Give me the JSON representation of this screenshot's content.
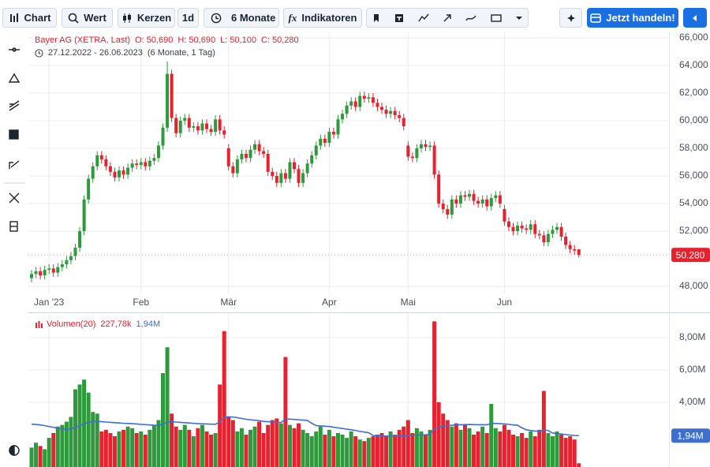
{
  "toolbar": {
    "chart": "Chart",
    "search": "Wert",
    "style": "Kerzen",
    "interval": "1d",
    "range": "6 Monate",
    "indicators": "Indikatoren",
    "trade": "Jetzt handeln!"
  },
  "chart_data": [
    {
      "type": "candlestick",
      "title": "Bayer AG (XETRA, Last)",
      "legend_items": [
        "O: 50,690",
        "H: 50,690",
        "L: 50,100",
        "C: 50,280"
      ],
      "date_range": "27.12.2022 - 26.06.2023",
      "period": "(6 Monate, 1 Tag)",
      "categories": [
        null,
        null,
        null,
        null,
        "Jan '23",
        null,
        null,
        null,
        null,
        null,
        null,
        null,
        null,
        null,
        null,
        null,
        null,
        null,
        null,
        null,
        null,
        null,
        null,
        null,
        null,
        "Feb",
        null,
        null,
        null,
        null,
        null,
        null,
        null,
        null,
        null,
        null,
        null,
        null,
        null,
        null,
        null,
        null,
        null,
        null,
        null,
        "Mär",
        null,
        null,
        null,
        null,
        null,
        null,
        null,
        null,
        null,
        null,
        null,
        null,
        null,
        null,
        null,
        null,
        null,
        null,
        null,
        null,
        null,
        null,
        "Apr",
        null,
        null,
        null,
        null,
        null,
        null,
        null,
        null,
        null,
        null,
        null,
        null,
        null,
        null,
        null,
        null,
        null,
        "Mai",
        null,
        null,
        null,
        null,
        null,
        null,
        null,
        null,
        null,
        null,
        null,
        null,
        null,
        null,
        null,
        null,
        null,
        null,
        null,
        null,
        null,
        "Jun",
        null,
        null,
        null,
        null,
        null,
        null,
        null,
        null,
        null,
        null,
        null,
        null,
        null,
        null,
        null,
        null,
        null
      ],
      "open": [
        48600,
        48900,
        49100,
        48800,
        49200,
        49300,
        49000,
        49400,
        49600,
        49900,
        50200,
        50800,
        52000,
        54300,
        55800,
        56700,
        57500,
        57200,
        56700,
        56300,
        55900,
        56400,
        56100,
        56600,
        56900,
        56800,
        57000,
        56700,
        57100,
        57300,
        58200,
        59500,
        63400,
        60200,
        59100,
        60000,
        60200,
        59500,
        59600,
        59300,
        59800,
        59400,
        59200,
        60100,
        59300,
        58000,
        56700,
        56200,
        57200,
        57600,
        57300,
        57900,
        58300,
        57800,
        57600,
        56300,
        56000,
        55500,
        56200,
        55800,
        57000,
        56500,
        55500,
        56200,
        56900,
        57500,
        58200,
        58700,
        58400,
        59200,
        59000,
        60100,
        60500,
        61100,
        61400,
        61000,
        61800,
        61600,
        61700,
        61300,
        61000,
        60800,
        60500,
        60700,
        60400,
        60200,
        58200,
        57400,
        57300,
        58000,
        58300,
        58100,
        58200,
        56100,
        54000,
        53600,
        53200,
        54300,
        54000,
        54600,
        54500,
        54700,
        54200,
        54000,
        54300,
        53800,
        54400,
        54600,
        53600,
        52700,
        52300,
        52000,
        52400,
        52200,
        52100,
        52500,
        51800,
        51700,
        51200,
        51800,
        52100,
        52300,
        51600,
        51000,
        50700,
        50690
      ],
      "high": [
        49200,
        49400,
        49400,
        49500,
        49600,
        49600,
        49700,
        49900,
        50200,
        50500,
        51100,
        52300,
        54600,
        56100,
        57000,
        57800,
        57800,
        57500,
        57000,
        56600,
        56700,
        56700,
        56900,
        57200,
        57200,
        57300,
        57300,
        57400,
        57600,
        58500,
        59800,
        64300,
        63700,
        60500,
        60300,
        60500,
        60500,
        59900,
        59900,
        60100,
        60100,
        59700,
        60400,
        60400,
        59600,
        58300,
        57000,
        57500,
        57900,
        57900,
        58200,
        58600,
        58600,
        58100,
        57900,
        56600,
        56300,
        56500,
        56500,
        57300,
        57300,
        56800,
        56500,
        57200,
        57800,
        58500,
        59000,
        59000,
        59500,
        59500,
        60400,
        60800,
        61400,
        61700,
        61700,
        62100,
        62100,
        62000,
        62000,
        61600,
        61300,
        61100,
        61000,
        61000,
        60700,
        60500,
        58500,
        57700,
        58300,
        58600,
        58600,
        58500,
        58500,
        56400,
        54300,
        53900,
        54600,
        54600,
        54900,
        54900,
        55000,
        55000,
        54500,
        54600,
        54600,
        54700,
        54900,
        54900,
        53900,
        53000,
        52600,
        52700,
        52700,
        52500,
        52800,
        52800,
        52100,
        52000,
        52100,
        52400,
        52600,
        52600,
        51900,
        51300,
        51000,
        50690
      ],
      "low": [
        48300,
        48600,
        48500,
        48500,
        48900,
        48700,
        48700,
        49100,
        49300,
        49600,
        49900,
        50500,
        51700,
        54000,
        55500,
        56400,
        56900,
        56400,
        56000,
        55600,
        55600,
        55800,
        55800,
        56300,
        56500,
        56500,
        56400,
        56400,
        56800,
        57000,
        57900,
        59200,
        59900,
        58800,
        58800,
        59700,
        59200,
        59200,
        59000,
        59000,
        59100,
        58900,
        58900,
        59000,
        58700,
        56400,
        55900,
        55900,
        56900,
        57000,
        57000,
        57600,
        57500,
        57300,
        56000,
        55700,
        55200,
        55200,
        55500,
        55500,
        56200,
        55200,
        55200,
        55900,
        56600,
        57200,
        57900,
        58100,
        58100,
        58700,
        58700,
        59800,
        60200,
        60800,
        60700,
        60700,
        61300,
        61300,
        61000,
        60700,
        60500,
        60200,
        60200,
        60100,
        59900,
        59300,
        57100,
        57000,
        57000,
        57700,
        57800,
        57800,
        55800,
        53700,
        53300,
        52900,
        52900,
        53700,
        53700,
        54200,
        54200,
        53900,
        53700,
        53700,
        53500,
        53500,
        54100,
        53700,
        52400,
        52000,
        51700,
        51700,
        51900,
        51800,
        51800,
        51500,
        51400,
        50900,
        50900,
        51500,
        51800,
        51300,
        50700,
        50400,
        50300,
        50100
      ],
      "close": [
        48900,
        49100,
        48800,
        49200,
        49300,
        49000,
        49400,
        49600,
        49900,
        50200,
        50800,
        52000,
        54300,
        55800,
        56700,
        57500,
        57200,
        56700,
        56300,
        55900,
        56400,
        56100,
        56600,
        56900,
        56800,
        57000,
        56700,
        57100,
        57300,
        58200,
        59500,
        63400,
        60200,
        59100,
        60000,
        60200,
        59500,
        59600,
        59300,
        59800,
        59400,
        59200,
        60100,
        59300,
        59000,
        56700,
        56200,
        57200,
        57600,
        57300,
        57900,
        58300,
        57800,
        57600,
        56300,
        56000,
        55500,
        56200,
        55800,
        57000,
        56500,
        55500,
        56200,
        56900,
        57500,
        58200,
        58700,
        58400,
        59200,
        59000,
        60100,
        60500,
        61100,
        61400,
        61000,
        61800,
        61600,
        61700,
        61300,
        61000,
        60800,
        60500,
        60700,
        60400,
        60200,
        59600,
        57400,
        57300,
        58000,
        58300,
        58100,
        58200,
        56100,
        54000,
        53600,
        53200,
        54300,
        54000,
        54600,
        54500,
        54700,
        54200,
        54000,
        54300,
        53800,
        54400,
        54600,
        54000,
        52700,
        52300,
        52000,
        52400,
        52200,
        52100,
        52500,
        51800,
        51700,
        51200,
        51800,
        52100,
        52300,
        51600,
        51000,
        50700,
        50600,
        50280
      ],
      "last_price_label": "50.280",
      "up_color": "#2f9a3c",
      "down_color": "#e8212f",
      "grid": true,
      "ylim": [
        47490,
        66460
      ],
      "yticks": [
        {
          "value": 48000,
          "label": "48,000"
        },
        {
          "value": 52000,
          "label": "52,000"
        },
        {
          "value": 54000,
          "label": "54,000"
        },
        {
          "value": 56000,
          "label": "56,000"
        },
        {
          "value": 58000,
          "label": "58,000"
        },
        {
          "value": 60000,
          "label": "60,000"
        },
        {
          "value": 62000,
          "label": "62,000"
        },
        {
          "value": 64000,
          "label": "64,000"
        },
        {
          "value": 66000,
          "label": "66,000"
        }
      ]
    },
    {
      "type": "bar",
      "title": "Volumen(20)",
      "grid": true,
      "series": [
        {
          "values": [
            1200000,
            1500000,
            1300000,
            1100000,
            1800000,
            2100000,
            2500000,
            2600000,
            2800000,
            3100000,
            4800000,
            5100000,
            5400000,
            4600000,
            3400000,
            3300000,
            2200000,
            2300000,
            2100000,
            1900000,
            2200000,
            2300000,
            2500000,
            2400000,
            2100000,
            2200000,
            2000000,
            2300000,
            2600000,
            2900000,
            5800000,
            7400000,
            3300000,
            2500000,
            2300000,
            2600000,
            2300000,
            1900000,
            2400000,
            2600000,
            2200000,
            2000000,
            2100000,
            5100000,
            8400000,
            3100000,
            2900000,
            2200000,
            2400000,
            2000000,
            2300000,
            2500000,
            2800000,
            2100000,
            2600000,
            2900000,
            3000000,
            2700000,
            6800000,
            2600000,
            2400000,
            2700000,
            2300000,
            2100000,
            1900000,
            2200000,
            2500000,
            2000000,
            2300000,
            1900000,
            2100000,
            2000000,
            1800000,
            2200000,
            1900000,
            1700000,
            1600000,
            1800000,
            1900000,
            2000000,
            2100000,
            1900000,
            2200000,
            2000000,
            2300000,
            2500000,
            2900000,
            2100000,
            2400000,
            2200000,
            2000000,
            2300000,
            9000000,
            4000000,
            3300000,
            2900000,
            2500000,
            2700000,
            2300000,
            2600000,
            2400000,
            2000000,
            2200000,
            2500000,
            2100000,
            3900000,
            2400000,
            2200000,
            2600000,
            2300000,
            2000000,
            1900000,
            2100000,
            1800000,
            2200000,
            1900000,
            2300000,
            4700000,
            2100000,
            1900000,
            2200000,
            2000000,
            1800000,
            1900000,
            1700000,
            227780
          ],
          "last_value_label": "227,78k"
        },
        {
          "type": "line",
          "color": "#3c6fcf",
          "values": [
            2650000,
            2630000,
            2600000,
            2560000,
            2500000,
            2450000,
            2400000,
            2350000,
            2320000,
            2350000,
            2450000,
            2550000,
            2680000,
            2760000,
            2800000,
            2820000,
            2800000,
            2780000,
            2760000,
            2740000,
            2720000,
            2700000,
            2690000,
            2680000,
            2660000,
            2640000,
            2620000,
            2600000,
            2580000,
            2570000,
            2650000,
            2780000,
            2800000,
            2780000,
            2760000,
            2740000,
            2720000,
            2700000,
            2680000,
            2670000,
            2660000,
            2650000,
            2640000,
            2780000,
            3080000,
            3100000,
            3090000,
            3050000,
            3000000,
            2950000,
            2920000,
            2890000,
            2860000,
            2820000,
            2800000,
            2780000,
            2760000,
            2750000,
            2980000,
            2960000,
            2940000,
            2920000,
            2900000,
            2880000,
            2700000,
            2560000,
            2540000,
            2520000,
            2500000,
            2460000,
            2420000,
            2380000,
            2340000,
            2300000,
            2260000,
            2200000,
            2160000,
            2120000,
            1950000,
            1930000,
            1920000,
            1910000,
            1900000,
            1900000,
            1910000,
            1930000,
            1960000,
            1960000,
            1970000,
            1980000,
            1990000,
            2000000,
            2350000,
            2450000,
            2520000,
            2560000,
            2580000,
            2600000,
            2610000,
            2620000,
            2630000,
            2620000,
            2610000,
            2620000,
            2610000,
            2690000,
            2690000,
            2680000,
            2660000,
            2640000,
            2600000,
            2580000,
            2420000,
            2300000,
            2260000,
            2220000,
            2200000,
            2300000,
            2250000,
            2100000,
            2070000,
            2040000,
            2000000,
            1970000,
            1950000,
            1940000
          ],
          "last_value_label": "1,94M"
        }
      ],
      "ylim": [
        0,
        9460000
      ],
      "yticks": [
        {
          "value": 4000000,
          "label": "4,00M"
        },
        {
          "value": 6000000,
          "label": "6,00M"
        },
        {
          "value": 8000000,
          "label": "8,00M"
        }
      ]
    }
  ]
}
